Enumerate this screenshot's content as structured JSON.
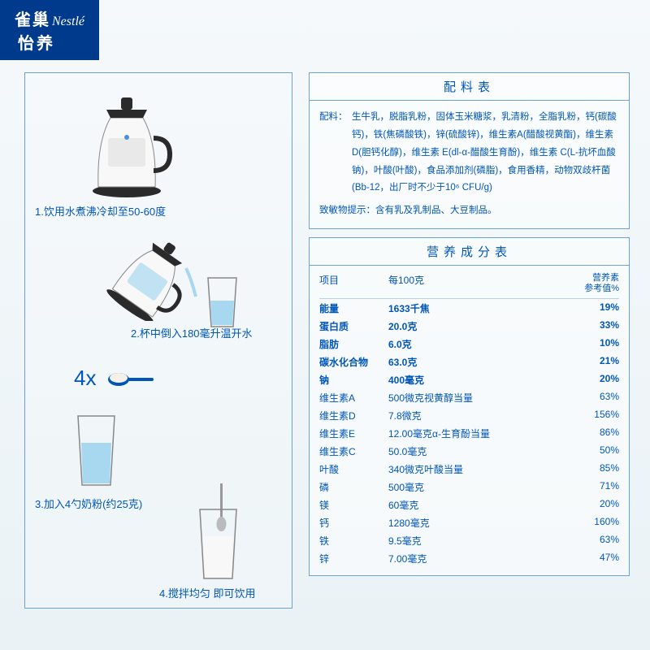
{
  "logo": {
    "cn": "雀巢",
    "en": "Nestlé",
    "sub": "怡养"
  },
  "colors": {
    "primary": "#0056b8",
    "border": "#6ba3d6",
    "logo_bg": "#003a8c",
    "water": "#a8d8f0"
  },
  "steps": {
    "s1": "1.饮用水煮沸冷却至50-60度",
    "s2": "2.杯中倒入180毫升温开水",
    "s3": "3.加入4勺奶粉(约25克)",
    "s4": "4.搅拌均匀 即可饮用",
    "fourx": "4x"
  },
  "ingredients": {
    "title": "配料表",
    "label": "配料：",
    "text": "生牛乳，脱脂乳粉，固体玉米糖浆，乳清粉，全脂乳粉，钙(碳酸钙)，铁(焦磷酸铁)，锌(硫酸锌)，维生素A(醋酸视黄酯)，维生素D(胆钙化醇)，维生素 E(dl-α-醋酸生育酚)，维生素 C(L-抗坏血酸钠)，叶酸(叶酸)，食品添加剂(磷脂)，食用香精，动物双歧杆菌(Bb-12，出厂时不少于10⁶ CFU/g)",
    "allergen": "致敏物提示：含有乳及乳制品、大豆制品。"
  },
  "nutrition": {
    "title": "营养成分表",
    "headers": {
      "c1": "项目",
      "c2": "每100克",
      "c3": "营养素\n参考值%"
    },
    "rows": [
      {
        "name": "能量",
        "val": "1633千焦",
        "pct": "19%",
        "bold": true
      },
      {
        "name": "蛋白质",
        "val": "20.0克",
        "pct": "33%",
        "bold": true
      },
      {
        "name": "脂肪",
        "val": "6.0克",
        "pct": "10%",
        "bold": true
      },
      {
        "name": "碳水化合物",
        "val": "63.0克",
        "pct": "21%",
        "bold": true
      },
      {
        "name": "钠",
        "val": "400毫克",
        "pct": "20%",
        "bold": true
      },
      {
        "name": "维生素A",
        "val": "500微克视黄醇当量",
        "pct": "63%",
        "bold": false
      },
      {
        "name": "维生素D",
        "val": "7.8微克",
        "pct": "156%",
        "bold": false
      },
      {
        "name": "维生素E",
        "val": "12.00毫克α-生育酚当量",
        "pct": "86%",
        "bold": false
      },
      {
        "name": "维生素C",
        "val": "50.0毫克",
        "pct": "50%",
        "bold": false
      },
      {
        "name": "叶酸",
        "val": "340微克叶酸当量",
        "pct": "85%",
        "bold": false
      },
      {
        "name": "磷",
        "val": "500毫克",
        "pct": "71%",
        "bold": false
      },
      {
        "name": "镁",
        "val": "60毫克",
        "pct": "20%",
        "bold": false
      },
      {
        "name": "钙",
        "val": "1280毫克",
        "pct": "160%",
        "bold": false
      },
      {
        "name": "铁",
        "val": "9.5毫克",
        "pct": "63%",
        "bold": false
      },
      {
        "name": "锌",
        "val": "7.00毫克",
        "pct": "47%",
        "bold": false
      }
    ]
  }
}
